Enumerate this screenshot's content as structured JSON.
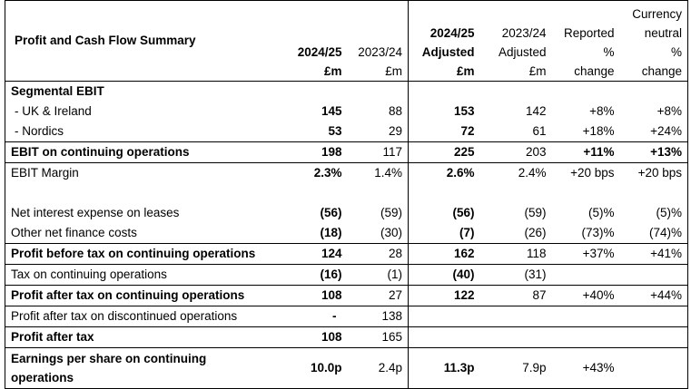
{
  "table": {
    "title": "Profit and Cash Flow Summary",
    "columns": [
      {
        "key": "c1",
        "lines": [
          "2024/25",
          "£m"
        ],
        "bold": true
      },
      {
        "key": "c2",
        "lines": [
          "2023/24",
          "£m"
        ],
        "bold": false
      },
      {
        "key": "c3",
        "lines": [
          "2024/25",
          "Adjusted",
          "£m"
        ],
        "bold": true
      },
      {
        "key": "c4",
        "lines": [
          "2023/24",
          "Adjusted",
          "£m"
        ],
        "bold": false
      },
      {
        "key": "c5",
        "lines": [
          "Reported",
          "%",
          "change"
        ],
        "bold": false
      },
      {
        "key": "c6",
        "lines": [
          "Currency",
          "neutral",
          "%",
          "change"
        ],
        "bold": false
      }
    ],
    "rows": [
      {
        "label": "Segmental EBIT",
        "bold": true,
        "values": [
          "",
          "",
          "",
          "",
          "",
          ""
        ]
      },
      {
        "label": "- UK & Ireland",
        "bold": false,
        "values": [
          "145",
          "88",
          "153",
          "142",
          "+8%",
          "+8%"
        ]
      },
      {
        "label": "- Nordics",
        "bold": false,
        "values": [
          "53",
          "29",
          "72",
          "61",
          "+18%",
          "+24%"
        ]
      },
      {
        "label": "EBIT on continuing operations",
        "bold": true,
        "values": [
          "198",
          "117",
          "225",
          "203",
          "+11%",
          "+13%"
        ]
      },
      {
        "label": "EBIT Margin",
        "bold": false,
        "values": [
          "2.3%",
          "1.4%",
          "2.6%",
          "2.4%",
          "+20 bps",
          "+20 bps"
        ]
      },
      {
        "label": "",
        "bold": false,
        "values": [
          "",
          "",
          "",
          "",
          "",
          ""
        ]
      },
      {
        "label": "Net interest expense on leases",
        "bold": false,
        "values": [
          "(56)",
          "(59)",
          "(56)",
          "(59)",
          "(5)%",
          "(5)%"
        ]
      },
      {
        "label": "Other net finance costs",
        "bold": false,
        "values": [
          "(18)",
          "(30)",
          "(7)",
          "(26)",
          "(73)%",
          "(74)%"
        ]
      },
      {
        "label": "Profit before tax on continuing operations",
        "bold": true,
        "values": [
          "124",
          "28",
          "162",
          "118",
          "+37%",
          "+41%"
        ]
      },
      {
        "label": "Tax on continuing operations",
        "bold": false,
        "values": [
          "(16)",
          "(1)",
          "(40)",
          "(31)",
          "",
          ""
        ]
      },
      {
        "label": "Profit after tax on continuing operations",
        "bold": true,
        "values": [
          "108",
          "27",
          "122",
          "87",
          "+40%",
          "+44%"
        ]
      },
      {
        "label": "Profit after tax on discontinued operations",
        "bold": false,
        "values": [
          "-",
          "138",
          "",
          "",
          "",
          ""
        ]
      },
      {
        "label": "Profit after tax",
        "bold": true,
        "values": [
          "108",
          "165",
          "",
          "",
          "",
          ""
        ]
      },
      {
        "label": "Earnings per share on continuing operations",
        "bold": true,
        "values": [
          "10.0p",
          "2.4p",
          "11.3p",
          "7.9p",
          "+43%",
          ""
        ]
      }
    ]
  }
}
